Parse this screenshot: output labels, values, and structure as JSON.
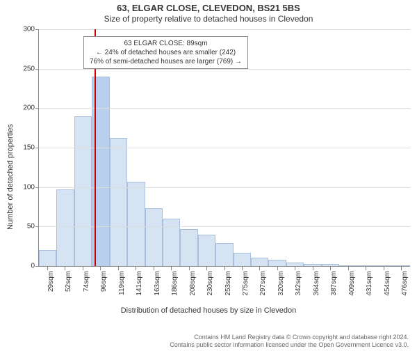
{
  "titles": {
    "main": "63, ELGAR CLOSE, CLEVEDON, BS21 5BS",
    "sub": "Size of property relative to detached houses in Clevedon",
    "y_axis": "Number of detached properties",
    "x_axis": "Distribution of detached houses by size in Clevedon"
  },
  "info_box": {
    "line1": "63 ELGAR CLOSE: 89sqm",
    "line2": "← 24% of detached houses are smaller (242)",
    "line3": "76% of semi-detached houses are larger (769) →"
  },
  "chart": {
    "type": "histogram",
    "y_max": 300,
    "y_ticks": [
      0,
      50,
      100,
      150,
      200,
      250,
      300
    ],
    "bar_fill": "#d6e3f3",
    "bar_stroke": "#a8bfdb",
    "highlight_fill": "#b8d0ee",
    "grid_color": "#dddddd",
    "axis_color": "#888888",
    "marker_color": "#cc0000",
    "marker_value_index": 2.65,
    "x_labels": [
      "29sqm",
      "52sqm",
      "74sqm",
      "96sqm",
      "119sqm",
      "141sqm",
      "163sqm",
      "186sqm",
      "208sqm",
      "230sqm",
      "253sqm",
      "275sqm",
      "297sqm",
      "320sqm",
      "342sqm",
      "364sqm",
      "387sqm",
      "409sqm",
      "431sqm",
      "454sqm",
      "476sqm"
    ],
    "values": [
      20,
      97,
      190,
      240,
      162,
      107,
      73,
      60,
      47,
      40,
      29,
      17,
      11,
      8,
      4,
      3,
      3,
      1,
      1,
      1,
      1
    ],
    "highlight_index": 3
  },
  "footer": {
    "line1": "Contains HM Land Registry data © Crown copyright and database right 2024.",
    "line2": "Contains public sector information licensed under the Open Government Licence v3.0."
  }
}
